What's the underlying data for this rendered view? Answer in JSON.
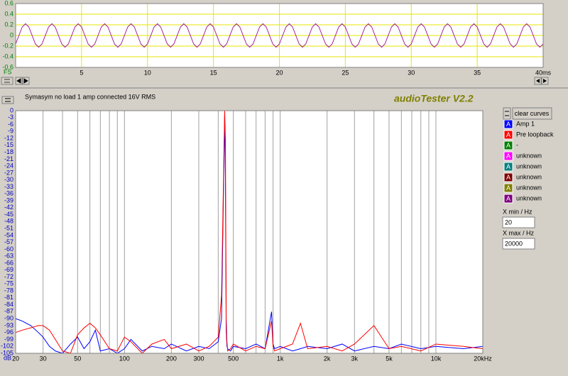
{
  "ui": {
    "caption": "Symasym no load 1 amp connected 16V RMS",
    "app_title": "audioTester V2.2",
    "clear_button": "clear curves",
    "curve_button": "A",
    "extra_curves": [
      {
        "label": "-",
        "color": "#008000"
      },
      {
        "label": "unknown",
        "color": "#ff00ff"
      },
      {
        "label": "unknown",
        "color": "#008080"
      },
      {
        "label": "unknown",
        "color": "#800000"
      },
      {
        "label": "unknown",
        "color": "#808000"
      },
      {
        "label": "unknown",
        "color": "#800080"
      }
    ],
    "xmin_label": "X min / Hz",
    "xmin_value": "20",
    "xmax_label": "X max / Hz",
    "xmax_value": "20000"
  },
  "chart_data": [
    {
      "type": "line",
      "y_label": "FS",
      "xlim": [
        0,
        40
      ],
      "ylim": [
        -0.6,
        0.6
      ],
      "xticks": [
        5,
        10,
        15,
        20,
        25,
        30,
        35,
        {
          "value": 40,
          "label": "40ms"
        }
      ],
      "yticks": [
        0.6,
        0.4,
        0.2,
        0,
        -0.2,
        -0.4,
        -0.6
      ],
      "xgrid": true,
      "ygrid": true,
      "grid_color": "#e6e600",
      "x": [
        0,
        0.25,
        0.5,
        0.75,
        1,
        1.25,
        1.5,
        1.75,
        2,
        2.25,
        2.5,
        2.75,
        3,
        3.25,
        3.5,
        3.75,
        4,
        4.25,
        4.5,
        4.75,
        5,
        5.25,
        5.5,
        5.75,
        6,
        6.25,
        6.5,
        6.75,
        7,
        7.25,
        7.5,
        7.75,
        8,
        8.25,
        8.5,
        8.75,
        9,
        9.25,
        9.5,
        9.75,
        10,
        10.25,
        10.5,
        10.75,
        11,
        11.25,
        11.5,
        11.75,
        12,
        12.25,
        12.5,
        12.75,
        13,
        13.25,
        13.5,
        13.75,
        14,
        14.25,
        14.5,
        14.75,
        15,
        15.25,
        15.5,
        15.75,
        16,
        16.25,
        16.5,
        16.75,
        17,
        17.25,
        17.5,
        17.75,
        18,
        18.25,
        18.5,
        18.75,
        19,
        19.25,
        19.5,
        19.75,
        20,
        20.25,
        20.5,
        20.75,
        21,
        21.25,
        21.5,
        21.75,
        22,
        22.25,
        22.5,
        22.75,
        23,
        23.25,
        23.5,
        23.75,
        24,
        24.25,
        24.5,
        24.75,
        25,
        25.25,
        25.5,
        25.75,
        26,
        26.25,
        26.5,
        26.75,
        27,
        27.25,
        27.5,
        27.75,
        28,
        28.25,
        28.5,
        28.75,
        29,
        29.25,
        29.5,
        29.75,
        30,
        30.25,
        30.5,
        30.75,
        31,
        31.25,
        31.5,
        31.75,
        32,
        32.25,
        32.5,
        32.75,
        33,
        33.25,
        33.5,
        33.75,
        34,
        34.25,
        34.5,
        34.75,
        35,
        35.25,
        35.5,
        35.75,
        36,
        36.25,
        36.5,
        36.75,
        37,
        37.25,
        37.5,
        37.75,
        38,
        38.25,
        38.5,
        38.75,
        39,
        39.25,
        39.5,
        39.75,
        40
      ],
      "series": [
        {
          "color": "#a0209a",
          "values": [
            -0.16,
            0,
            0.16,
            0.22,
            0.16,
            0,
            -0.16,
            -0.22,
            -0.16,
            0,
            0.16,
            0.22,
            0.16,
            0,
            -0.16,
            -0.22,
            -0.16,
            0,
            0.16,
            0.22,
            0.16,
            0,
            -0.16,
            -0.22,
            -0.16,
            0,
            0.16,
            0.22,
            0.16,
            0,
            -0.16,
            -0.22,
            -0.16,
            0,
            0.16,
            0.22,
            0.16,
            0,
            -0.16,
            -0.22,
            -0.16,
            0,
            0.16,
            0.22,
            0.16,
            0,
            -0.16,
            -0.22,
            -0.16,
            0,
            0.16,
            0.22,
            0.16,
            0,
            -0.16,
            -0.22,
            -0.16,
            0,
            0.16,
            0.22,
            0.16,
            0,
            -0.16,
            -0.22,
            -0.16,
            0,
            0.16,
            0.22,
            0.16,
            0,
            -0.16,
            -0.22,
            -0.16,
            0,
            0.16,
            0.22,
            0.16,
            0,
            -0.16,
            -0.22,
            -0.16,
            0,
            0.16,
            0.22,
            0.16,
            0,
            -0.16,
            -0.22,
            -0.16,
            0,
            0.16,
            0.22,
            0.16,
            0,
            -0.16,
            -0.22,
            -0.16,
            0,
            0.16,
            0.22,
            0.16,
            0,
            -0.16,
            -0.22,
            -0.16,
            0,
            0.16,
            0.22,
            0.16,
            0,
            -0.16,
            -0.22,
            -0.16,
            0,
            0.16,
            0.22,
            0.16,
            0,
            -0.16,
            -0.22,
            -0.16,
            0,
            0.16,
            0.22,
            0.16,
            0,
            -0.16,
            -0.22,
            -0.16,
            0,
            0.16,
            0.22,
            0.16,
            0,
            -0.16,
            -0.22,
            -0.16,
            0,
            0.16,
            0.22,
            0.16,
            0,
            -0.16,
            -0.22,
            -0.16,
            0,
            0.16,
            0.22,
            0.16,
            0,
            -0.16,
            -0.22,
            -0.16,
            0,
            0.16,
            0.22,
            0.16,
            0,
            -0.16,
            -0.22,
            -0.16
          ]
        }
      ]
    },
    {
      "type": "line",
      "y_label": "dB",
      "xscale": "log",
      "xlim": [
        20,
        20000
      ],
      "ylim": [
        -105,
        0
      ],
      "xticks": [
        20,
        30,
        50,
        100,
        200,
        300,
        500,
        {
          "value": 1000,
          "label": "1k"
        },
        {
          "value": 2000,
          "label": "2k"
        },
        {
          "value": 3000,
          "label": "3k"
        },
        {
          "value": 5000,
          "label": "5k"
        },
        {
          "value": 10000,
          "label": "10k"
        },
        {
          "value": 20000,
          "label": "20kHz"
        }
      ],
      "xminor": [
        40,
        60,
        70,
        80,
        90,
        400,
        600,
        700,
        800,
        900,
        4000,
        6000,
        7000,
        8000,
        9000
      ],
      "yticks": [
        0,
        -3,
        -6,
        -9,
        -12,
        -15,
        -18,
        -21,
        -24,
        -27,
        -30,
        -33,
        -36,
        -39,
        -42,
        -45,
        -48,
        -51,
        -54,
        -57,
        -60,
        -63,
        -66,
        -69,
        -72,
        -75,
        -78,
        -81,
        -84,
        -87,
        -90,
        -93,
        -96,
        -99,
        -102,
        -105
      ],
      "xgrid": true,
      "ygrid": false,
      "grid_color": "#a0a0a0",
      "x": [
        20,
        22,
        25,
        28,
        30,
        33,
        36,
        40,
        45,
        50,
        55,
        60,
        65,
        70,
        80,
        90,
        100,
        110,
        130,
        150,
        180,
        200,
        250,
        300,
        350,
        400,
        420,
        440,
        445,
        450,
        455,
        460,
        480,
        500,
        600,
        700,
        800,
        880,
        900,
        920,
        1000,
        1200,
        1350,
        1500,
        2000,
        2500,
        3000,
        4000,
        5000,
        6000,
        8000,
        10000,
        15000,
        20000
      ],
      "series": [
        {
          "name": "Amp 1",
          "color": "#0000ff",
          "values": [
            -90,
            -91,
            -93,
            -96,
            -98,
            -102,
            -104,
            -105,
            -101,
            -98,
            -103,
            -100,
            -95,
            -104,
            -103,
            -105,
            -103,
            -99,
            -104,
            -102,
            -103,
            -101,
            -104,
            -102,
            -103,
            -100,
            -90,
            -2,
            -30,
            -95,
            -102,
            -103,
            -104,
            -102,
            -103,
            -101,
            -103,
            -87,
            -101,
            -103,
            -102,
            -104,
            -103,
            -102,
            -103,
            -101,
            -104,
            -102,
            -103,
            -101,
            -103,
            -102,
            -103,
            -102
          ]
        },
        {
          "name": "Pre loopback",
          "color": "#ff0000",
          "values": [
            -96,
            -95,
            -94,
            -93,
            -93,
            -95,
            -99,
            -104,
            -105,
            -97,
            -94,
            -92,
            -94,
            -97,
            -103,
            -104,
            -98,
            -100,
            -105,
            -101,
            -99,
            -103,
            -101,
            -104,
            -102,
            -98,
            -80,
            0,
            -13,
            -90,
            -100,
            -104,
            -103,
            -101,
            -104,
            -102,
            -103,
            -91,
            -102,
            -104,
            -103,
            -101,
            -92,
            -103,
            -102,
            -104,
            -101,
            -93,
            -103,
            -102,
            -104,
            -101,
            -102,
            -103
          ]
        }
      ]
    }
  ]
}
